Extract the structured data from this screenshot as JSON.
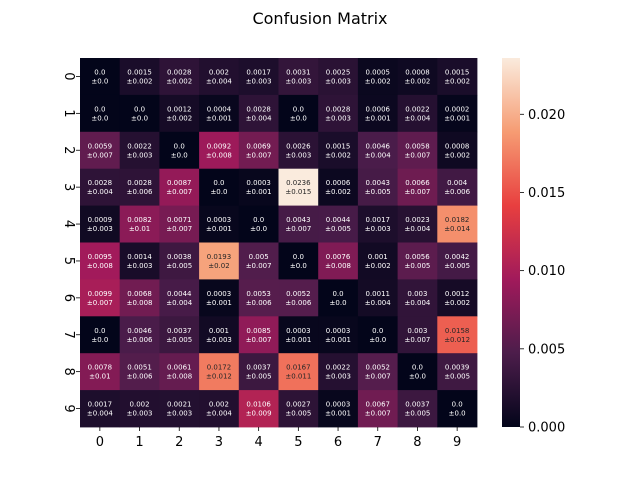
{
  "chart_data": {
    "type": "heatmap",
    "title": "Confusion Matrix",
    "xlabel": "",
    "ylabel": "",
    "x_ticks": [
      "0",
      "1",
      "2",
      "3",
      "4",
      "5",
      "6",
      "7",
      "8",
      "9"
    ],
    "y_ticks": [
      "0",
      "1",
      "2",
      "3",
      "4",
      "5",
      "6",
      "7",
      "8",
      "9"
    ],
    "colorbar": {
      "vmin": 0.0,
      "vmax": 0.0236,
      "ticks": [
        0.0,
        0.005,
        0.01,
        0.015,
        0.02
      ],
      "tick_labels": [
        "0.000",
        "0.005",
        "0.010",
        "0.015",
        "0.020"
      ],
      "colormap": "rocket",
      "colormap_stops": [
        "#03051a",
        "#4c1d4b",
        "#a11a5b",
        "#e83f3f",
        "#f69c73",
        "#faebdd"
      ]
    },
    "means": [
      [
        0.0,
        0.0015,
        0.0028,
        0.002,
        0.0017,
        0.0031,
        0.0025,
        0.0005,
        0.0008,
        0.0015
      ],
      [
        0.0,
        0.0,
        0.0012,
        0.0004,
        0.0028,
        0.0,
        0.0028,
        0.0006,
        0.0022,
        0.0002
      ],
      [
        0.0059,
        0.0022,
        0.0,
        0.0092,
        0.0069,
        0.0026,
        0.0015,
        0.0046,
        0.0058,
        0.0008
      ],
      [
        0.0028,
        0.0028,
        0.0087,
        0.0,
        0.0003,
        0.0236,
        0.0006,
        0.0043,
        0.0066,
        0.004
      ],
      [
        0.0009,
        0.0082,
        0.0071,
        0.0003,
        0.0,
        0.0043,
        0.0044,
        0.0017,
        0.0023,
        0.0182
      ],
      [
        0.0095,
        0.0014,
        0.0038,
        0.0193,
        0.005,
        0.0,
        0.0076,
        0.001,
        0.0056,
        0.0042
      ],
      [
        0.0099,
        0.0068,
        0.0044,
        0.0003,
        0.0053,
        0.0052,
        0.0,
        0.0011,
        0.003,
        0.0012
      ],
      [
        0.0,
        0.0046,
        0.0037,
        0.001,
        0.0085,
        0.0003,
        0.0003,
        0.0,
        0.003,
        0.0158
      ],
      [
        0.0078,
        0.0051,
        0.0061,
        0.0172,
        0.0037,
        0.0167,
        0.0022,
        0.0052,
        0.0,
        0.0039
      ],
      [
        0.0017,
        0.002,
        0.0021,
        0.002,
        0.0106,
        0.0027,
        0.0003,
        0.0067,
        0.0037,
        0.0
      ]
    ],
    "cell_labels": [
      [
        [
          "0.0",
          "±0.0"
        ],
        [
          "0.0015",
          "±0.002"
        ],
        [
          "0.0028",
          "±0.002"
        ],
        [
          "0.002",
          "±0.004"
        ],
        [
          "0.0017",
          "±0.003"
        ],
        [
          "0.0031",
          "±0.003"
        ],
        [
          "0.0025",
          "±0.003"
        ],
        [
          "0.0005",
          "±0.002"
        ],
        [
          "0.0008",
          "±0.002"
        ],
        [
          "0.0015",
          "±0.002"
        ]
      ],
      [
        [
          "0.0",
          "±0.0"
        ],
        [
          "0.0",
          "±0.0"
        ],
        [
          "0.0012",
          "±0.002"
        ],
        [
          "0.0004",
          "±0.001"
        ],
        [
          "0.0028",
          "±0.004"
        ],
        [
          "0.0",
          "±0.0"
        ],
        [
          "0.0028",
          "±0.003"
        ],
        [
          "0.0006",
          "±0.001"
        ],
        [
          "0.0022",
          "±0.004"
        ],
        [
          "0.0002",
          "±0.001"
        ]
      ],
      [
        [
          "0.0059",
          "±0.007"
        ],
        [
          "0.0022",
          "±0.003"
        ],
        [
          "0.0",
          "±0.0"
        ],
        [
          "0.0092",
          "±0.008"
        ],
        [
          "0.0069",
          "±0.007"
        ],
        [
          "0.0026",
          "±0.003"
        ],
        [
          "0.0015",
          "±0.002"
        ],
        [
          "0.0046",
          "±0.004"
        ],
        [
          "0.0058",
          "±0.007"
        ],
        [
          "0.0008",
          "±0.002"
        ]
      ],
      [
        [
          "0.0028",
          "±0.004"
        ],
        [
          "0.0028",
          "±0.006"
        ],
        [
          "0.0087",
          "±0.007"
        ],
        [
          "0.0",
          "±0.0"
        ],
        [
          "0.0003",
          "±0.001"
        ],
        [
          "0.0236",
          "±0.015"
        ],
        [
          "0.0006",
          "±0.002"
        ],
        [
          "0.0043",
          "±0.005"
        ],
        [
          "0.0066",
          "±0.007"
        ],
        [
          "0.004",
          "±0.006"
        ]
      ],
      [
        [
          "0.0009",
          "±0.003"
        ],
        [
          "0.0082",
          "±0.01"
        ],
        [
          "0.0071",
          "±0.007"
        ],
        [
          "0.0003",
          "±0.001"
        ],
        [
          "0.0",
          "±0.0"
        ],
        [
          "0.0043",
          "±0.007"
        ],
        [
          "0.0044",
          "±0.005"
        ],
        [
          "0.0017",
          "±0.003"
        ],
        [
          "0.0023",
          "±0.004"
        ],
        [
          "0.0182",
          "±0.014"
        ]
      ],
      [
        [
          "0.0095",
          "±0.008"
        ],
        [
          "0.0014",
          "±0.003"
        ],
        [
          "0.0038",
          "±0.005"
        ],
        [
          "0.0193",
          "±0.02"
        ],
        [
          "0.005",
          "±0.007"
        ],
        [
          "0.0",
          "±0.0"
        ],
        [
          "0.0076",
          "±0.008"
        ],
        [
          "0.001",
          "±0.002"
        ],
        [
          "0.0056",
          "±0.005"
        ],
        [
          "0.0042",
          "±0.005"
        ]
      ],
      [
        [
          "0.0099",
          "±0.007"
        ],
        [
          "0.0068",
          "±0.008"
        ],
        [
          "0.0044",
          "±0.004"
        ],
        [
          "0.0003",
          "±0.001"
        ],
        [
          "0.0053",
          "±0.006"
        ],
        [
          "0.0052",
          "±0.006"
        ],
        [
          "0.0",
          "±0.0"
        ],
        [
          "0.0011",
          "±0.004"
        ],
        [
          "0.003",
          "±0.004"
        ],
        [
          "0.0012",
          "±0.002"
        ]
      ],
      [
        [
          "0.0",
          "±0.0"
        ],
        [
          "0.0046",
          "±0.006"
        ],
        [
          "0.0037",
          "±0.005"
        ],
        [
          "0.001",
          "±0.003"
        ],
        [
          "0.0085",
          "±0.007"
        ],
        [
          "0.0003",
          "±0.001"
        ],
        [
          "0.0003",
          "±0.001"
        ],
        [
          "0.0",
          "±0.0"
        ],
        [
          "0.003",
          "±0.007"
        ],
        [
          "0.0158",
          "±0.012"
        ]
      ],
      [
        [
          "0.0078",
          "±0.01"
        ],
        [
          "0.0051",
          "±0.006"
        ],
        [
          "0.0061",
          "±0.008"
        ],
        [
          "0.0172",
          "±0.012"
        ],
        [
          "0.0037",
          "±0.005"
        ],
        [
          "0.0167",
          "±0.011"
        ],
        [
          "0.0022",
          "±0.003"
        ],
        [
          "0.0052",
          "±0.007"
        ],
        [
          "0.0",
          "±0.0"
        ],
        [
          "0.0039",
          "±0.005"
        ]
      ],
      [
        [
          "0.0017",
          "±0.004"
        ],
        [
          "0.002",
          "±0.003"
        ],
        [
          "0.0021",
          "±0.003"
        ],
        [
          "0.002",
          "±0.004"
        ],
        [
          "0.0106",
          "±0.009"
        ],
        [
          "0.0027",
          "±0.005"
        ],
        [
          "0.0003",
          "±0.001"
        ],
        [
          "0.0067",
          "±0.007"
        ],
        [
          "0.0037",
          "±0.005"
        ],
        [
          "0.0",
          "±0.0"
        ]
      ]
    ]
  }
}
